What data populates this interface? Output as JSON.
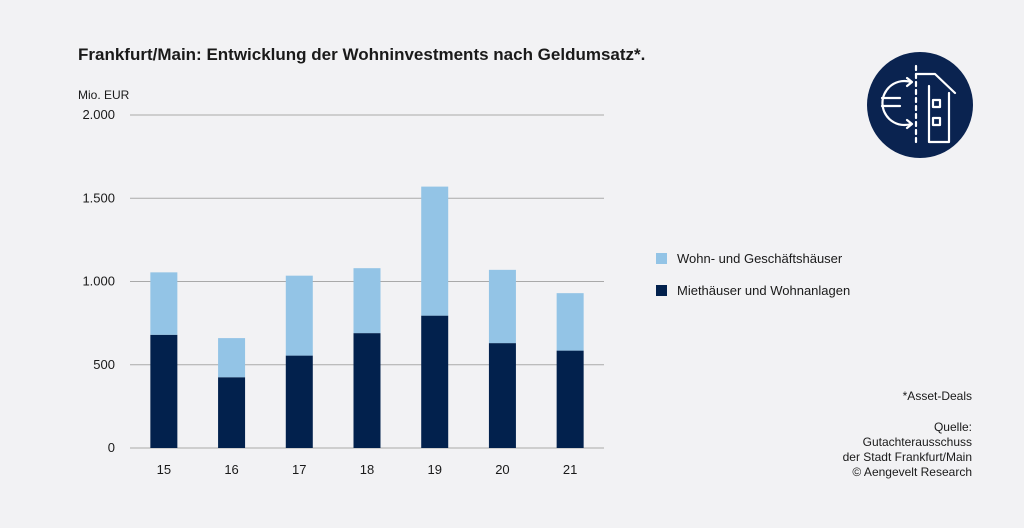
{
  "colors": {
    "series_light": "#93c4e6",
    "series_dark": "#02214d",
    "grid": "#a9a9a9",
    "logo_bg": "#0a2350"
  },
  "logo_icon": "euro-house-icon",
  "notes": {
    "footnote": "*Asset-Deals",
    "source_lines": [
      "Quelle:",
      "Gutachterausschuss",
      "der Stadt Frankfurt/Main",
      "© Aengevelt Research"
    ]
  },
  "chart_data": {
    "type": "bar",
    "stacked": true,
    "title": "Frankfurt/Main: Entwicklung der Wohninvestments nach Geldumsatz*.",
    "unit_label": "Mio. EUR",
    "categories": [
      "15",
      "16",
      "17",
      "18",
      "19",
      "20",
      "21"
    ],
    "ylim": [
      0,
      2000
    ],
    "yticks": [
      0,
      500,
      1000,
      1500,
      2000
    ],
    "ytick_labels": [
      "0",
      "500",
      "1.000",
      "1.500",
      "2.000"
    ],
    "grid": true,
    "legend_position": "right",
    "series": [
      {
        "name": "Miethäuser und Wohnanlagen",
        "color": "#02214d",
        "values": [
          680,
          425,
          555,
          690,
          795,
          630,
          585
        ]
      },
      {
        "name": "Wohn- und Geschäftshäuser",
        "color": "#93c4e6",
        "values": [
          375,
          235,
          480,
          390,
          775,
          440,
          345
        ]
      }
    ]
  }
}
